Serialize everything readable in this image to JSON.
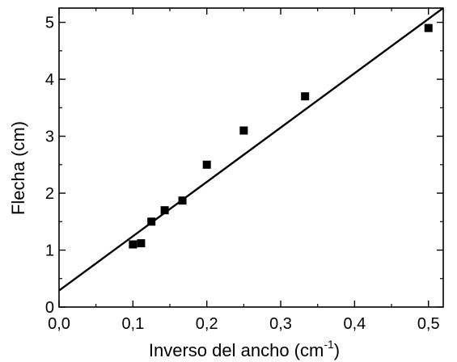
{
  "chart_data": {
    "type": "scatter",
    "xlabel": "Inverso del ancho (cm",
    "xlabel_superscript": "-1",
    "xlabel_suffix": ")",
    "ylabel": "Flecha (cm)",
    "xlim": [
      0.0,
      0.52
    ],
    "ylim": [
      0,
      5.25
    ],
    "xticks": [
      {
        "value": 0.0,
        "label": "0,0"
      },
      {
        "value": 0.1,
        "label": "0,1"
      },
      {
        "value": 0.2,
        "label": "0,2"
      },
      {
        "value": 0.3,
        "label": "0,3"
      },
      {
        "value": 0.4,
        "label": "0,4"
      },
      {
        "value": 0.5,
        "label": "0,5"
      }
    ],
    "yticks": [
      {
        "value": 0,
        "label": "0"
      },
      {
        "value": 1,
        "label": "1"
      },
      {
        "value": 2,
        "label": "2"
      },
      {
        "value": 3,
        "label": "3"
      },
      {
        "value": 4,
        "label": "4"
      },
      {
        "value": 5,
        "label": "5"
      }
    ],
    "grid": false,
    "marker": "square",
    "marker_color": "#000000",
    "points": [
      {
        "x": 0.1,
        "y": 1.1
      },
      {
        "x": 0.111,
        "y": 1.12
      },
      {
        "x": 0.125,
        "y": 1.5
      },
      {
        "x": 0.143,
        "y": 1.7
      },
      {
        "x": 0.167,
        "y": 1.87
      },
      {
        "x": 0.2,
        "y": 2.5
      },
      {
        "x": 0.25,
        "y": 3.1
      },
      {
        "x": 0.333,
        "y": 3.7
      },
      {
        "x": 0.5,
        "y": 4.9
      }
    ],
    "fit_line": {
      "type": "linear",
      "intercept": 0.29,
      "slope": 9.54,
      "color": "#000000"
    }
  }
}
